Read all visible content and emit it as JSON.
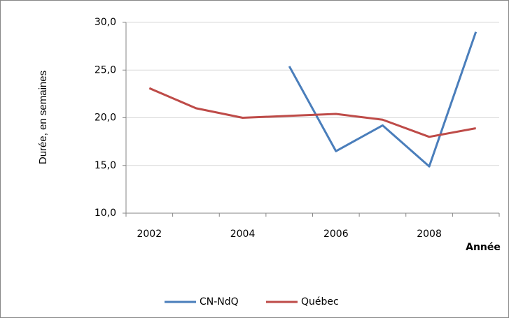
{
  "chart_data": {
    "type": "line",
    "y_label": "Durée, en semaines",
    "x_label": "Année",
    "categories": [
      "2002",
      null,
      "2004",
      null,
      "2006",
      null,
      "2008",
      null
    ],
    "series": [
      {
        "name": "CN-NdQ",
        "color": "#4a7ebb",
        "values": [
          null,
          null,
          null,
          25.4,
          16.5,
          19.2,
          14.9,
          29.0
        ]
      },
      {
        "name": "Québec",
        "color": "#be4b48",
        "values": [
          23.1,
          21.0,
          20.0,
          20.2,
          20.4,
          19.8,
          18.0,
          18.9
        ]
      }
    ],
    "ylim": [
      10,
      30
    ],
    "yticks": [
      {
        "value": 10,
        "label": "10,0"
      },
      {
        "value": 15,
        "label": "15,0"
      },
      {
        "value": 20,
        "label": "20,0"
      },
      {
        "value": 25,
        "label": "25,0"
      },
      {
        "value": 30,
        "label": "30,0"
      }
    ],
    "grid": true,
    "legend": "bottom"
  }
}
